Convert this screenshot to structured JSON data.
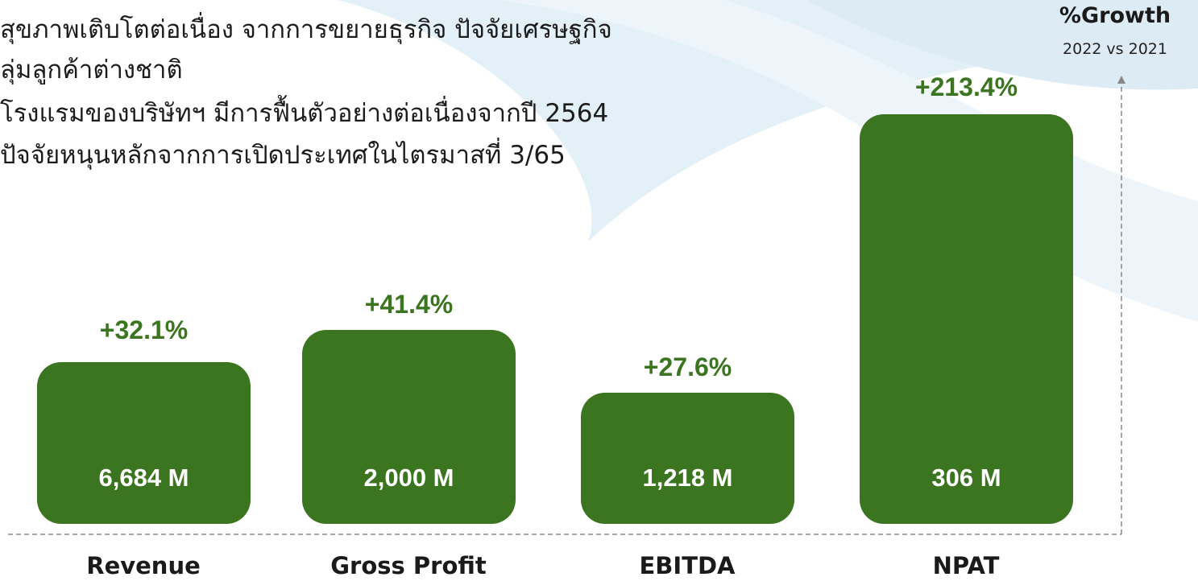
{
  "notes": [
    "สุขภาพเติบโตต่อเนื่อง จากการขยายธุรกิจ ปัจจัยเศรษฐกิจ",
    "ลุ่มลูกค้าต่างชาติ",
    "โรงแรมของบริษัทฯ มีการฟื้นตัวอย่างต่อเนื่องจากปี 2564",
    "ปัจจัยหนุนหลักจากการเปิดประเทศในไตรมาสที่ 3/65"
  ],
  "header": {
    "title": "%Growth",
    "subtitle": "2022 vs 2021"
  },
  "items": [
    {
      "name": "Revenue",
      "growth": "+32.1%",
      "amount": "6,684 M"
    },
    {
      "name": "Gross Profit",
      "growth": "+41.4%",
      "amount": "2,000 M"
    },
    {
      "name": "EBITDA",
      "growth": "+27.6%",
      "amount": "1,218 M"
    },
    {
      "name": "NPAT",
      "growth": "+213.4%",
      "amount": "306 M"
    }
  ]
}
